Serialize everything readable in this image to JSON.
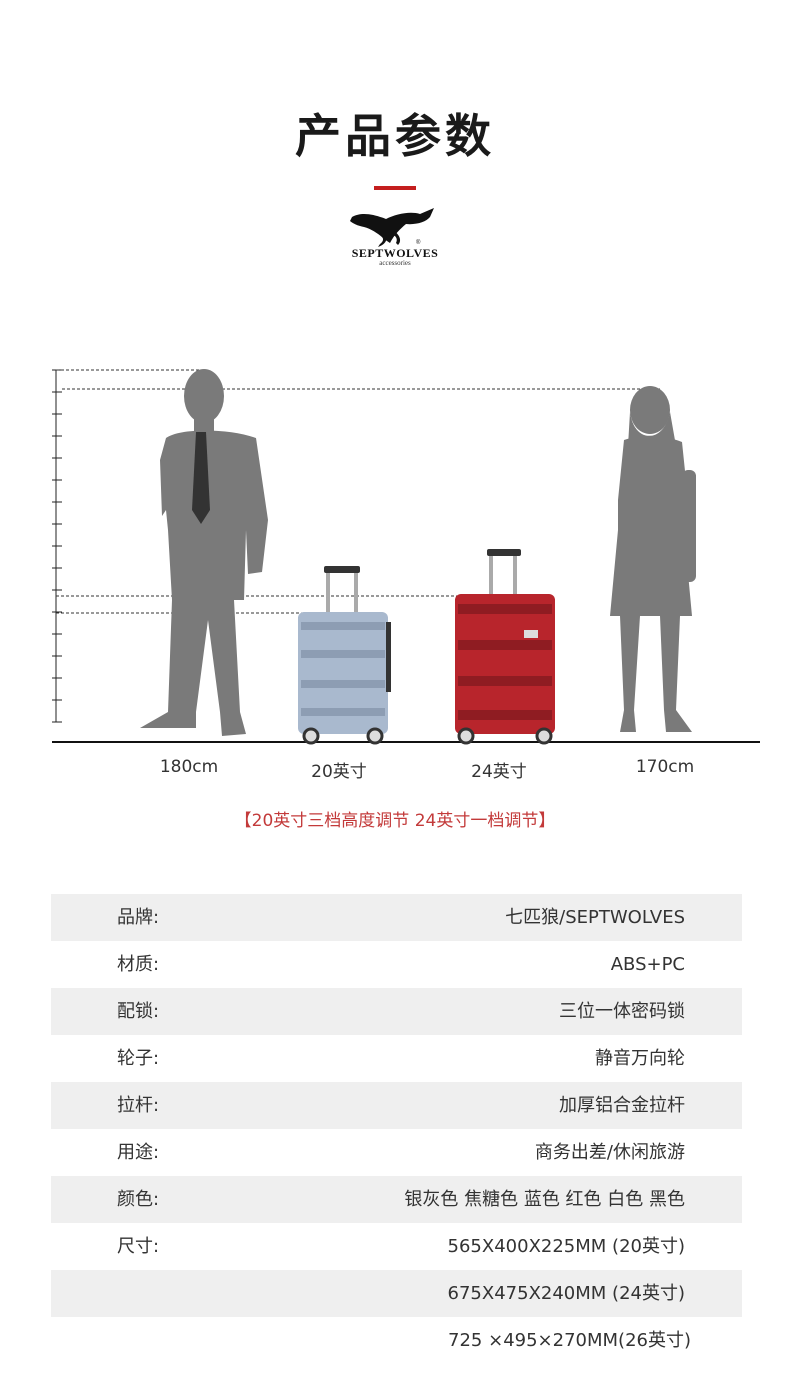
{
  "header": {
    "title": "产品参数",
    "brand": {
      "name": "SEPTWOLVES",
      "sub": "accessories",
      "reg": "®"
    }
  },
  "scene": {
    "captions": [
      "180cm",
      "20英寸",
      "24英寸",
      "170cm"
    ],
    "colors": {
      "silhouette": "#7a7a7a",
      "suitcase_small": "#a9b9ce",
      "suitcase_large": "#b8252c"
    }
  },
  "note": "【20英寸三档高度调节   24英寸一档调节】",
  "specs": [
    {
      "label": "品牌:",
      "value": "七匹狼/SEPTWOLVES"
    },
    {
      "label": "材质:",
      "value": "ABS+PC"
    },
    {
      "label": "配锁:",
      "value": "三位一体密码锁"
    },
    {
      "label": "轮子:",
      "value": "静音万向轮"
    },
    {
      "label": "拉杆:",
      "value": "加厚铝合金拉杆"
    },
    {
      "label": "用途:",
      "value": "商务出差/休闲旅游"
    },
    {
      "label": "颜色:",
      "value": "银灰色 焦糖色 蓝色 红色 白色 黑色"
    },
    {
      "label": "尺寸:",
      "value": "565X400X225MM (20英寸)"
    },
    {
      "label": "",
      "value": "675X475X240MM (24英寸)"
    },
    {
      "label": "",
      "value": "725 ×495×270MM(26英寸)"
    }
  ],
  "accent": "#c41e1e"
}
